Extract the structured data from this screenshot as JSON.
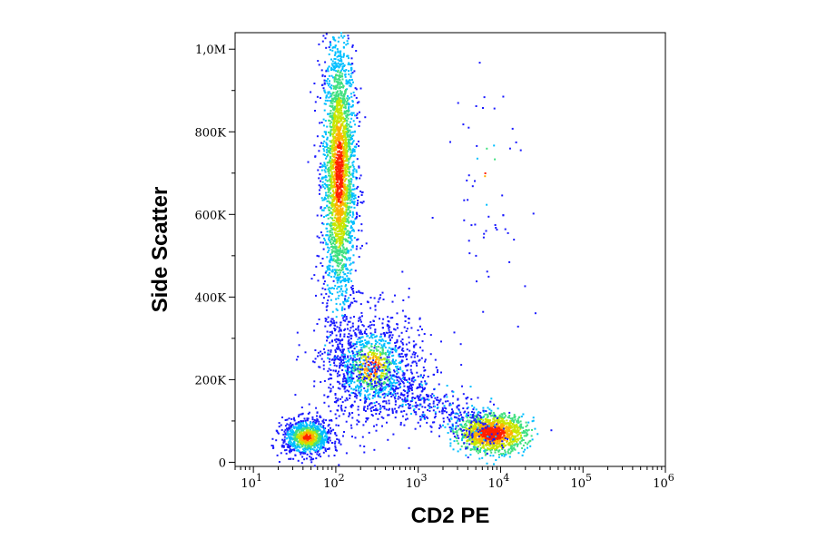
{
  "chart_data": {
    "type": "scatter",
    "subtype": "density-pseudocolor",
    "xlabel": "CD2 PE",
    "ylabel": "Side Scatter",
    "x_scale": "log",
    "xlim": [
      6,
      1000000
    ],
    "ylim": [
      -10000,
      1040000
    ],
    "x_ticks": [
      {
        "value": 10,
        "base": "10",
        "exp": "1"
      },
      {
        "value": 100,
        "base": "10",
        "exp": "2"
      },
      {
        "value": 1000,
        "base": "10",
        "exp": "3"
      },
      {
        "value": 10000,
        "base": "10",
        "exp": "4"
      },
      {
        "value": 100000,
        "base": "10",
        "exp": "5"
      },
      {
        "value": 1000000,
        "base": "10",
        "exp": "6"
      }
    ],
    "y_ticks": [
      {
        "value": 0,
        "label": "0"
      },
      {
        "value": 200000,
        "label": "200K"
      },
      {
        "value": 400000,
        "label": "400K"
      },
      {
        "value": 600000,
        "label": "600K"
      },
      {
        "value": 800000,
        "label": "800K"
      },
      {
        "value": 1000000,
        "label": "1,0M"
      }
    ],
    "color_scale": [
      "#1a1aff",
      "#00bfff",
      "#40e080",
      "#c8e600",
      "#ffb000",
      "#ff2000"
    ],
    "populations": [
      {
        "x_center": 110,
        "y_center": 700000,
        "x_spread_decades": 0.1,
        "y_spread": 170000,
        "count": 2600,
        "density": "high"
      },
      {
        "x_center": 45,
        "y_center": 60000,
        "x_spread_decades": 0.15,
        "y_spread": 22000,
        "count": 900,
        "density": "medium"
      },
      {
        "x_center": 8000,
        "y_center": 70000,
        "x_spread_decades": 0.2,
        "y_spread": 22000,
        "count": 1300,
        "density": "very high"
      },
      {
        "x_center": 280,
        "y_center": 230000,
        "x_spread_decades": 0.3,
        "y_spread": 70000,
        "count": 1100,
        "density": "low-medium"
      },
      {
        "x_center": 7000,
        "y_center": 700000,
        "x_spread_decades": 0.25,
        "y_spread": 150000,
        "count": 60,
        "density": "sparse"
      }
    ]
  }
}
